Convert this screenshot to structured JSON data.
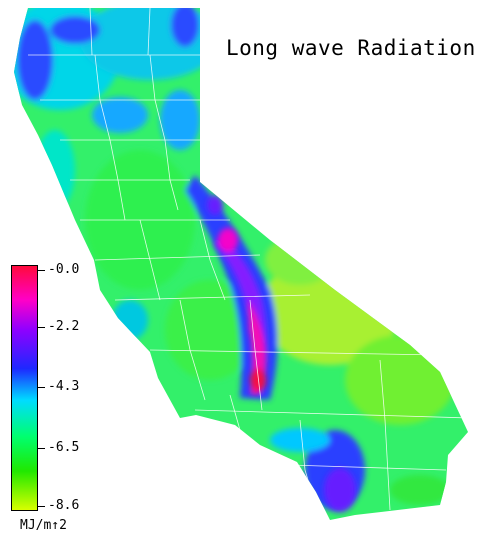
{
  "title": "Long wave Radiation",
  "legend": {
    "ticks": [
      "-0.0",
      "-2.2",
      "-4.3",
      "-6.5",
      "-8.6"
    ],
    "unit": "MJ/m↑2"
  },
  "colors": {
    "max": "#ff0a3c",
    "magenta": "#ff00c8",
    "purple": "#9000ff",
    "blue": "#1e28ff",
    "cyan": "#00dcff",
    "green": "#00ff6e",
    "lime": "#20e800",
    "min": "#d8ff00",
    "county_lines": "#ffffff"
  }
}
